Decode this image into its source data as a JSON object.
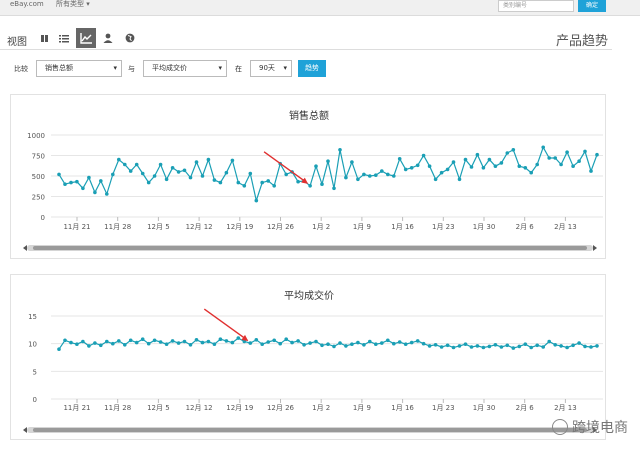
{
  "topbar": {
    "site": "eBay.com",
    "category": "所有类型 ▾",
    "search_placeholder": "类别编号",
    "search_button": "确定"
  },
  "view": {
    "label": "视图",
    "icons": [
      "grid-icon",
      "list-icon",
      "chart-icon",
      "user-icon",
      "globe-icon"
    ],
    "active_index": 2,
    "page_title": "产品趋势"
  },
  "controls": {
    "compare_label": "比较",
    "metric_a": "销售总额",
    "with_label": "与",
    "metric_b": "平均成交价",
    "in_label": "在",
    "period": "90天",
    "trend_button": "趋势"
  },
  "charts": [
    {
      "title": "销售总额",
      "y_ticks": [
        "1000",
        "750",
        "500",
        "250",
        "0"
      ],
      "x_ticks": [
        "11月 21",
        "11月 28",
        "12月 5",
        "12月 12",
        "12月 19",
        "12月 26",
        "1月 2",
        "1月 9",
        "1月 16",
        "1月 23",
        "1月 30",
        "2月 6",
        "2月 13"
      ]
    },
    {
      "title": "平均成交价",
      "y_ticks": [
        "15",
        "10",
        "5",
        "0"
      ],
      "x_ticks": [
        "11月 21",
        "11月 28",
        "12月 5",
        "12月 12",
        "12月 19",
        "12月 26",
        "1月 2",
        "1月 9",
        "1月 16",
        "1月 23",
        "1月 30",
        "2月 6",
        "2月 13"
      ]
    }
  ],
  "chart_data": [
    {
      "type": "line",
      "title": "销售总额",
      "ylim": [
        0,
        1000
      ],
      "x_tick_labels": [
        "11月 21",
        "11月 28",
        "12月 5",
        "12月 12",
        "12月 19",
        "12月 26",
        "1月 2",
        "1月 9",
        "1月 16",
        "1月 23",
        "1月 30",
        "2月 6",
        "2月 13"
      ],
      "color": "#1a9fb5",
      "values": [
        520,
        400,
        420,
        430,
        350,
        480,
        300,
        440,
        280,
        520,
        700,
        640,
        560,
        640,
        530,
        420,
        500,
        640,
        460,
        600,
        550,
        570,
        480,
        670,
        500,
        700,
        450,
        420,
        540,
        690,
        420,
        380,
        530,
        200,
        420,
        440,
        380,
        650,
        520,
        550,
        430,
        440,
        380,
        620,
        400,
        680,
        350,
        820,
        480,
        670,
        460,
        520,
        500,
        510,
        560,
        520,
        500,
        710,
        580,
        600,
        630,
        750,
        620,
        460,
        540,
        580,
        670,
        460,
        700,
        610,
        760,
        600,
        700,
        620,
        660,
        780,
        820,
        620,
        600,
        540,
        640,
        850,
        720,
        720,
        640,
        790,
        620,
        680,
        800,
        560,
        760
      ]
    },
    {
      "type": "line",
      "title": "平均成交价",
      "ylim": [
        0,
        15
      ],
      "x_tick_labels": [
        "11月 21",
        "11月 28",
        "12月 5",
        "12月 12",
        "12月 19",
        "12月 26",
        "1月 2",
        "1月 9",
        "1月 16",
        "1月 23",
        "1月 30",
        "2月 6",
        "2月 13"
      ],
      "color": "#1a9fb5",
      "values": [
        9.0,
        10.6,
        10.2,
        9.9,
        10.4,
        9.6,
        10.1,
        9.7,
        10.4,
        10.0,
        10.5,
        9.8,
        10.6,
        10.2,
        10.8,
        10.0,
        10.6,
        10.3,
        9.9,
        10.5,
        10.1,
        10.4,
        9.8,
        10.7,
        10.2,
        10.4,
        9.9,
        10.8,
        10.5,
        10.2,
        11.0,
        10.4,
        10.1,
        10.7,
        9.9,
        10.3,
        10.6,
        10.0,
        10.8,
        10.2,
        10.5,
        9.8,
        10.1,
        10.4,
        9.7,
        9.9,
        9.5,
        10.1,
        9.6,
        9.9,
        10.2,
        9.8,
        10.4,
        9.9,
        10.1,
        10.6,
        10.0,
        10.3,
        9.9,
        10.2,
        10.5,
        10.0,
        9.6,
        9.8,
        9.4,
        9.7,
        9.3,
        9.6,
        9.9,
        9.4,
        9.6,
        9.3,
        9.5,
        9.8,
        9.4,
        9.7,
        9.2,
        9.5,
        9.9,
        9.3,
        9.7,
        9.4,
        10.4,
        9.8,
        9.6,
        9.3,
        9.7,
        10.1,
        9.5,
        9.4,
        9.6
      ]
    }
  ],
  "watermark": "跨境电商"
}
